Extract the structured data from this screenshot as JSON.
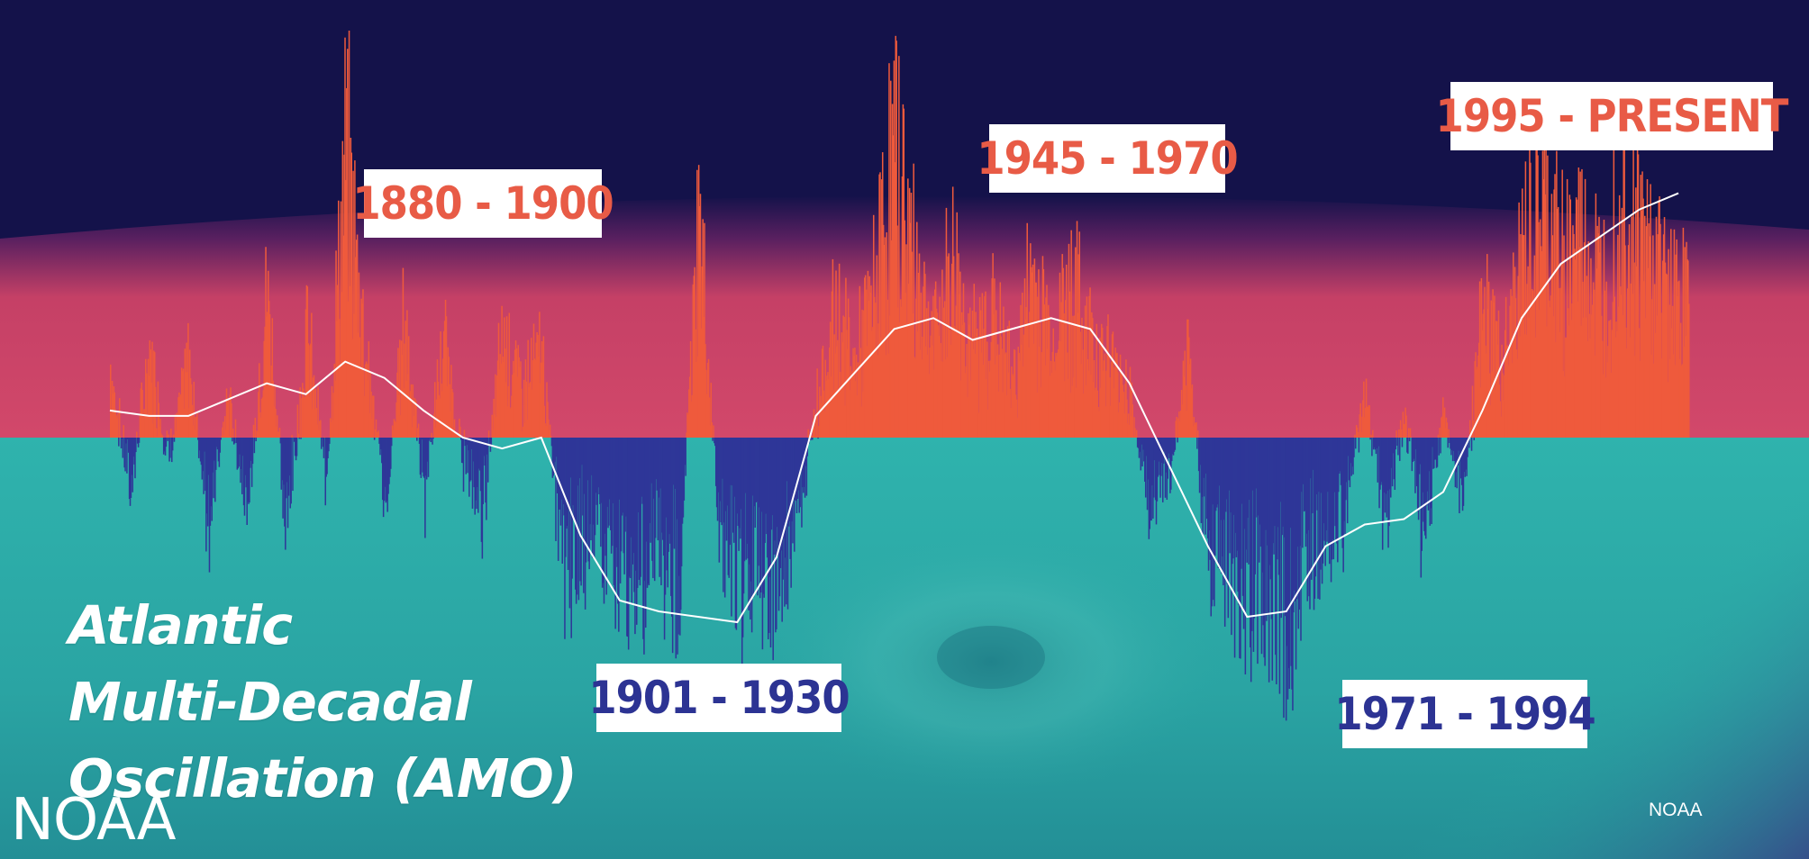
{
  "colors": {
    "sky": "#14124a",
    "warm_band": "#cf4363",
    "cool_band": "#2aa9a6",
    "positive_bar": "#ef5a3c",
    "negative_bar": "#2e3798",
    "smoothed_line": "#ffffff",
    "label_warm_text": "#e85b46",
    "label_cool_text": "#2c3393"
  },
  "title_lines": [
    "Atlantic",
    "Multi-Decadal",
    "Oscillation (AMO)"
  ],
  "logo_text": "NOAA",
  "credit": "NOAA",
  "chart_data": {
    "type": "bar",
    "title": "Atlantic Multi-Decadal Oscillation (AMO)",
    "xlabel": "",
    "ylabel": "",
    "xlim": [
      1856,
      2017
    ],
    "ylim": [
      -0.45,
      0.6
    ],
    "grid": false,
    "legend": "none",
    "bar_anchors": {
      "x": [
        1856,
        1858,
        1860,
        1862,
        1864,
        1866,
        1868,
        1870,
        1872,
        1874,
        1876,
        1878,
        1880,
        1882,
        1884,
        1886,
        1888,
        1890,
        1892,
        1894,
        1896,
        1898,
        1900,
        1902,
        1904,
        1906,
        1908,
        1910,
        1912,
        1914,
        1916,
        1918,
        1920,
        1922,
        1924,
        1926,
        1928,
        1930,
        1932,
        1934,
        1936,
        1938,
        1940,
        1942,
        1944,
        1946,
        1948,
        1950,
        1952,
        1954,
        1956,
        1958,
        1960,
        1962,
        1964,
        1966,
        1968,
        1970,
        1972,
        1974,
        1976,
        1978,
        1980,
        1982,
        1984,
        1986,
        1988,
        1990,
        1992,
        1994,
        1996,
        1998,
        2000,
        2002,
        2004,
        2006,
        2008,
        2010,
        2012,
        2014,
        2016
      ],
      "y": [
        0.15,
        -0.12,
        0.18,
        -0.05,
        0.16,
        -0.18,
        0.08,
        -0.15,
        0.3,
        -0.2,
        0.22,
        -0.08,
        0.58,
        0.2,
        -0.15,
        0.25,
        -0.12,
        0.2,
        -0.05,
        -0.15,
        0.22,
        0.1,
        0.18,
        -0.28,
        -0.22,
        -0.18,
        -0.3,
        -0.28,
        -0.22,
        -0.3,
        0.45,
        -0.15,
        -0.3,
        -0.25,
        -0.32,
        -0.2,
        0.08,
        0.25,
        0.15,
        0.3,
        0.58,
        0.35,
        0.2,
        0.35,
        0.18,
        0.25,
        0.12,
        0.32,
        0.2,
        0.3,
        0.2,
        0.15,
        0.1,
        -0.15,
        -0.08,
        0.15,
        -0.25,
        -0.25,
        -0.35,
        -0.3,
        -0.38,
        -0.28,
        -0.2,
        -0.15,
        0.1,
        -0.18,
        0.05,
        -0.22,
        0.05,
        -0.12,
        0.25,
        0.15,
        0.35,
        0.45,
        0.35,
        0.4,
        0.3,
        0.5,
        0.4,
        0.35,
        0.28
      ]
    },
    "smoothed": {
      "x": [
        1856,
        1860,
        1864,
        1868,
        1872,
        1876,
        1880,
        1884,
        1888,
        1892,
        1896,
        1900,
        1904,
        1908,
        1912,
        1916,
        1920,
        1924,
        1928,
        1932,
        1936,
        1940,
        1944,
        1948,
        1952,
        1956,
        1960,
        1964,
        1968,
        1972,
        1976,
        1980,
        1984,
        1988,
        1992,
        1996,
        2000,
        2004,
        2008,
        2012,
        2016
      ],
      "y": [
        0.05,
        0.04,
        0.04,
        0.07,
        0.1,
        0.08,
        0.14,
        0.11,
        0.05,
        0.0,
        -0.02,
        0.0,
        -0.18,
        -0.3,
        -0.32,
        -0.33,
        -0.34,
        -0.22,
        0.04,
        0.12,
        0.2,
        0.22,
        0.18,
        0.2,
        0.22,
        0.2,
        0.1,
        -0.05,
        -0.2,
        -0.33,
        -0.32,
        -0.2,
        -0.16,
        -0.15,
        -0.1,
        0.05,
        0.22,
        0.32,
        0.37,
        0.42,
        0.45
      ]
    },
    "annotations": [
      {
        "text": "1880 - 1900",
        "phase": "warm"
      },
      {
        "text": "1901 - 1930",
        "phase": "cool"
      },
      {
        "text": "1945 - 1970",
        "phase": "warm"
      },
      {
        "text": "1971 - 1994",
        "phase": "cool"
      },
      {
        "text": "1995 - PRESENT",
        "phase": "warm"
      }
    ]
  }
}
